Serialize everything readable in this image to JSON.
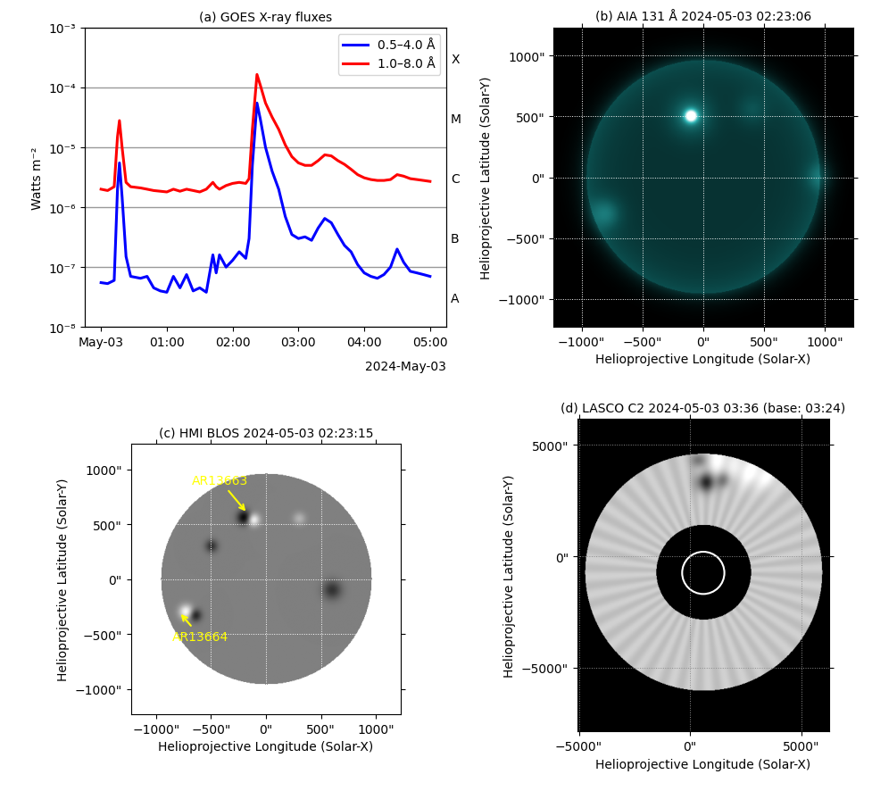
{
  "chart_data": [
    {
      "type": "line",
      "title": "(a) GOES X-ray fluxes",
      "ylabel": "Watts m⁻²",
      "x_offset_label": "2024-May-03",
      "log": "y",
      "grid": true,
      "legend": "upper right",
      "x": [
        0.0,
        0.1,
        0.2,
        0.25,
        0.28,
        0.32,
        0.38,
        0.45,
        0.6,
        0.7,
        0.8,
        0.9,
        1.0,
        1.1,
        1.2,
        1.3,
        1.4,
        1.5,
        1.6,
        1.7,
        1.75,
        1.8,
        1.9,
        2.0,
        2.1,
        2.2,
        2.25,
        2.3,
        2.37,
        2.42,
        2.5,
        2.6,
        2.7,
        2.8,
        2.9,
        3.0,
        3.1,
        3.2,
        3.3,
        3.4,
        3.5,
        3.6,
        3.7,
        3.8,
        3.9,
        4.0,
        4.1,
        4.2,
        4.3,
        4.4,
        4.5,
        4.6,
        4.7,
        4.8,
        4.9,
        5.0
      ],
      "series": [
        {
          "name": "0.5–4.0 Å",
          "color": "blue",
          "values": [
            5.5e-08,
            5.3e-08,
            6e-08,
            2e-06,
            5.5e-06,
            1.5e-06,
            1.5e-07,
            7e-08,
            6.5e-08,
            7e-08,
            4.5e-08,
            4e-08,
            3.8e-08,
            7e-08,
            4.5e-08,
            7.5e-08,
            4e-08,
            4.5e-08,
            3.8e-08,
            1.6e-07,
            8e-08,
            1.6e-07,
            1e-07,
            1.3e-07,
            1.8e-07,
            1.4e-07,
            3e-07,
            5e-06,
            5.5e-05,
            3e-05,
            1e-05,
            4e-06,
            2e-06,
            7e-07,
            3.5e-07,
            3e-07,
            3.2e-07,
            2.8e-07,
            4.5e-07,
            6.5e-07,
            5.5e-07,
            3.5e-07,
            2.3e-07,
            1.8e-07,
            1.1e-07,
            8e-08,
            7e-08,
            6.5e-08,
            7.5e-08,
            1e-07,
            2e-07,
            1.2e-07,
            8.5e-08,
            8e-08,
            7.5e-08,
            7e-08
          ]
        },
        {
          "name": "1.0–8.0 Å",
          "color": "red",
          "values": [
            2e-06,
            1.9e-06,
            2.2e-06,
            1.5e-05,
            2.8e-05,
            1e-05,
            2.6e-06,
            2.2e-06,
            2.1e-06,
            2e-06,
            1.9e-06,
            1.85e-06,
            1.8e-06,
            2e-06,
            1.85e-06,
            2e-06,
            1.9e-06,
            1.8e-06,
            2e-06,
            2.6e-06,
            2.2e-06,
            2e-06,
            2.3e-06,
            2.5e-06,
            2.6e-06,
            2.5e-06,
            3e-06,
            2e-05,
            0.000165,
            0.00011,
            5.5e-05,
            3.2e-05,
            2e-05,
            1.1e-05,
            7e-06,
            5.5e-06,
            5e-06,
            5e-06,
            6e-06,
            7.5e-06,
            7.2e-06,
            6e-06,
            5.2e-06,
            4.3e-06,
            3.5e-06,
            3.1e-06,
            2.9e-06,
            2.8e-06,
            2.8e-06,
            2.9e-06,
            3.5e-06,
            3.3e-06,
            3e-06,
            2.9e-06,
            2.8e-06,
            2.7e-06
          ]
        }
      ],
      "xlim": [
        -0.25,
        5.25
      ],
      "xticks": [
        {
          "value": 0,
          "label": "May-03"
        },
        {
          "value": 1,
          "label": "01:00"
        },
        {
          "value": 2,
          "label": "02:00"
        },
        {
          "value": 3,
          "label": "03:00"
        },
        {
          "value": 4,
          "label": "04:00"
        },
        {
          "value": 5,
          "label": "05:00"
        }
      ],
      "ylim": [
        1e-08,
        0.001
      ],
      "yticks": [
        {
          "value": 1e-08,
          "label": "10⁻⁸"
        },
        {
          "value": 1e-07,
          "label": "10⁻⁷"
        },
        {
          "value": 1e-06,
          "label": "10⁻⁶"
        },
        {
          "value": 1e-05,
          "label": "10⁻⁵"
        },
        {
          "value": 0.0001,
          "label": "10⁻⁴"
        },
        {
          "value": 0.001,
          "label": "10⁻³"
        }
      ],
      "y2lim": [
        1e-08,
        0.001
      ],
      "y2ticks": [
        {
          "value": 3.16e-08,
          "label": "A"
        },
        {
          "value": 3.16e-07,
          "label": "B"
        },
        {
          "value": 3.16e-06,
          "label": "C"
        },
        {
          "value": 3.16e-05,
          "label": "M"
        },
        {
          "value": 0.000316,
          "label": "X"
        }
      ]
    },
    {
      "type": "image",
      "title": "(b) AIA 131 Å 2024-05-03 02:23:06",
      "xlabel": "Helioprojective Longitude (Solar-X)",
      "ylabel": "Helioprojective Latitude (Solar-Y)",
      "grid": true,
      "xlim": [
        -1230,
        1230
      ],
      "ylim": [
        -1230,
        1230
      ],
      "xticks": [
        {
          "value": -1000,
          "label": "−1000\""
        },
        {
          "value": -500,
          "label": "−500\""
        },
        {
          "value": 0,
          "label": "0\""
        },
        {
          "value": 500,
          "label": "500\""
        },
        {
          "value": 1000,
          "label": "1000\""
        }
      ],
      "yticks": [
        {
          "value": -1000,
          "label": "−1000\""
        },
        {
          "value": -500,
          "label": "−500\""
        },
        {
          "value": 0,
          "label": "0\""
        },
        {
          "value": 500,
          "label": "500\""
        },
        {
          "value": 1000,
          "label": "1000\""
        }
      ]
    },
    {
      "type": "image",
      "title": "(c) HMI BLOS 2024-05-03 02:23:15",
      "xlabel": "Helioprojective Longitude (Solar-X)",
      "ylabel": "Helioprojective Latitude (Solar-Y)",
      "grid": true,
      "xlim": [
        -1230,
        1230
      ],
      "ylim": [
        -1230,
        1230
      ],
      "annotations": [
        "AR13663",
        "AR13664"
      ],
      "xticks": [
        {
          "value": -1000,
          "label": "−1000\""
        },
        {
          "value": -500,
          "label": "−500\""
        },
        {
          "value": 0,
          "label": "0\""
        },
        {
          "value": 500,
          "label": "500\""
        },
        {
          "value": 1000,
          "label": "1000\""
        }
      ],
      "yticks": [
        {
          "value": -1000,
          "label": "−1000\""
        },
        {
          "value": -500,
          "label": "−500\""
        },
        {
          "value": 0,
          "label": "0\""
        },
        {
          "value": 500,
          "label": "500\""
        },
        {
          "value": 1000,
          "label": "1000\""
        }
      ]
    },
    {
      "type": "image",
      "title": "(d) LASCO C2 2024-05-03 03:36 (base: 03:24)",
      "xlabel": "Helioprojective Longitude (Solar-X)",
      "ylabel": "Helioprojective Latitude (Solar-Y)",
      "grid": true,
      "xlim": [
        -5070,
        6270
      ],
      "ylim": [
        -7890,
        6180
      ],
      "xticks": [
        {
          "value": -5000,
          "label": "−5000\""
        },
        {
          "value": 0,
          "label": "0\""
        },
        {
          "value": 5000,
          "label": "5000\""
        }
      ],
      "yticks": [
        {
          "value": -5000,
          "label": "−5000\""
        },
        {
          "value": 0,
          "label": "0\""
        },
        {
          "value": 5000,
          "label": "5000\""
        }
      ]
    }
  ]
}
